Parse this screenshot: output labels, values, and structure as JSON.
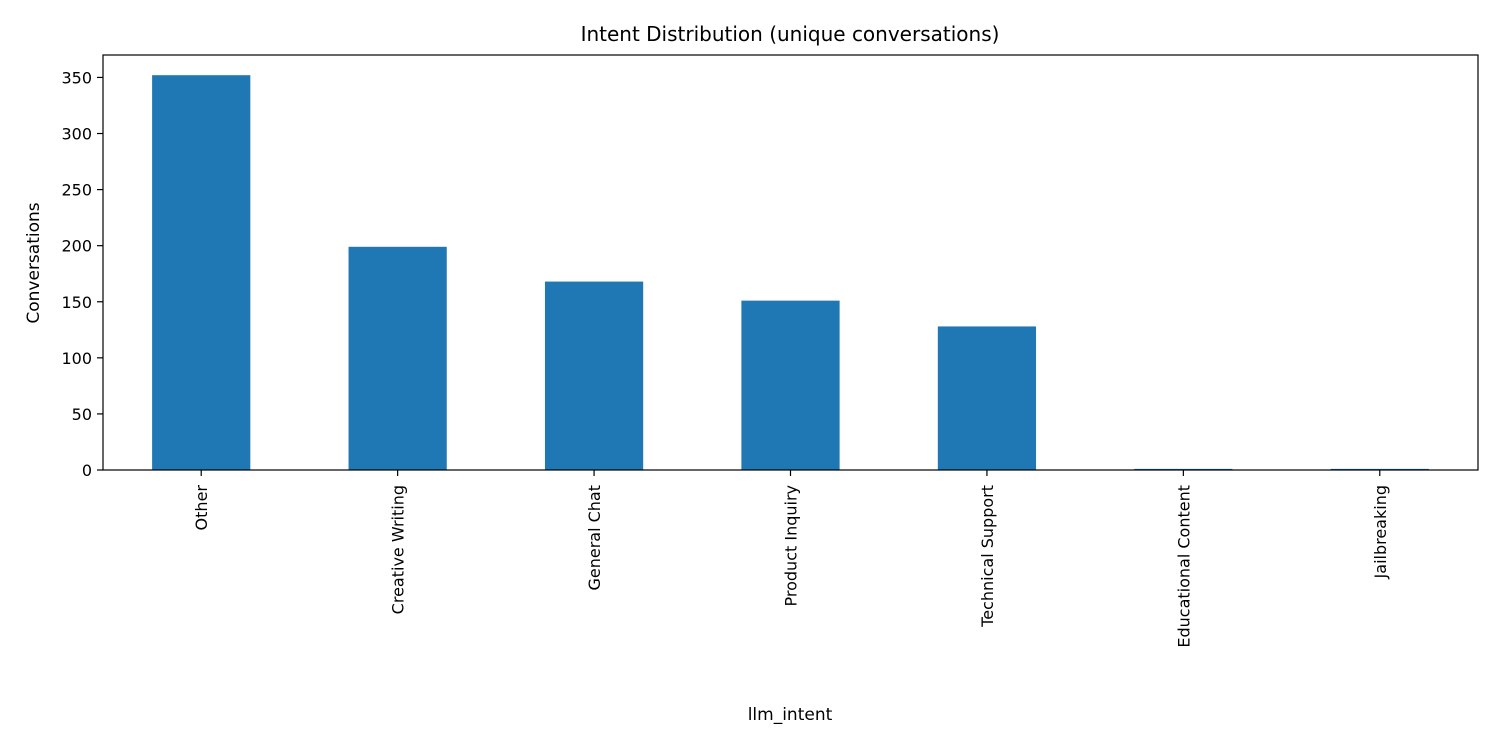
{
  "chart_data": {
    "type": "bar",
    "title": "Intent Distribution (unique conversations)",
    "xlabel": "llm_intent",
    "ylabel": "Conversations",
    "categories": [
      "Other",
      "Creative Writing",
      "General Chat",
      "Product Inquiry",
      "Technical Support",
      "Educational Content",
      "Jailbreaking"
    ],
    "values": [
      352,
      199,
      168,
      151,
      128,
      1,
      1
    ],
    "ylim": [
      0,
      370
    ],
    "yticks": [
      0,
      50,
      100,
      150,
      200,
      250,
      300,
      350
    ],
    "bar_color": "#1f77b4",
    "grid": false,
    "legend": "none"
  }
}
